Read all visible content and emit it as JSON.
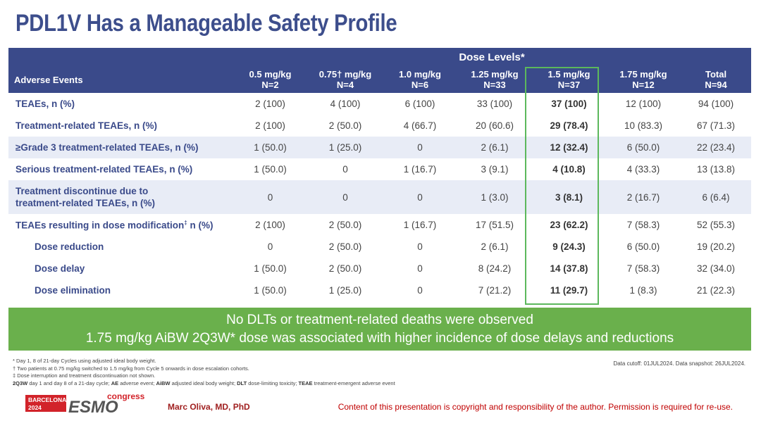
{
  "title": "PDL1V Has a Manageable Safety Profile",
  "table": {
    "dose_levels_label": "Dose Levels*",
    "ae_header": "Adverse Events",
    "columns": [
      {
        "dose": "0.5 mg/kg",
        "n": "N=2"
      },
      {
        "dose": "0.75† mg/kg",
        "n": "N=4"
      },
      {
        "dose": "1.0 mg/kg",
        "n": "N=6"
      },
      {
        "dose": "1.25 mg/kg",
        "n": "N=33"
      },
      {
        "dose": "1.5 mg/kg",
        "n": "N=37"
      },
      {
        "dose": "1.75 mg/kg",
        "n": "N=12"
      },
      {
        "dose": "Total",
        "n": "N=94"
      }
    ],
    "rows": [
      {
        "label": "TEAEs, n (%)",
        "values": [
          "2 (100)",
          "4 (100)",
          "6 (100)",
          "33 (100)",
          "37 (100)",
          "12 (100)",
          "94 (100)"
        ]
      },
      {
        "label": "Treatment-related TEAEs, n (%)",
        "values": [
          "2 (100)",
          "2 (50.0)",
          "4 (66.7)",
          "20 (60.6)",
          "29 (78.4)",
          "10 (83.3)",
          "67 (71.3)"
        ]
      },
      {
        "label": "≥Grade 3 treatment-related TEAEs, n (%)",
        "values": [
          "1 (50.0)",
          "1 (25.0)",
          "0",
          "2 (6.1)",
          "12 (32.4)",
          "6 (50.0)",
          "22 (23.4)"
        ]
      },
      {
        "label": "Serious treatment-related TEAEs, n (%)",
        "values": [
          "1 (50.0)",
          "0",
          "1 (16.7)",
          "3 (9.1)",
          "4 (10.8)",
          "4 (33.3)",
          "13 (13.8)"
        ]
      },
      {
        "label_line1": "Treatment discontinue due to",
        "label_line2": "treatment-related TEAEs, n (%)",
        "values": [
          "0",
          "0",
          "0",
          "1 (3.0)",
          "3 (8.1)",
          "2 (16.7)",
          "6 (6.4)"
        ]
      },
      {
        "label": "TEAEs resulting in dose modification",
        "label_sup": "‡",
        "label_tail": " n (%)",
        "values": [
          "2 (100)",
          "2 (50.0)",
          "1 (16.7)",
          "17 (51.5)",
          "23 (62.2)",
          "7 (58.3)",
          "52 (55.3)"
        ]
      },
      {
        "label": "Dose reduction",
        "values": [
          "0",
          "2 (50.0)",
          "0",
          "2 (6.1)",
          "9 (24.3)",
          "6 (50.0)",
          "19 (20.2)"
        ]
      },
      {
        "label": "Dose delay",
        "values": [
          "1 (50.0)",
          "2 (50.0)",
          "0",
          "8 (24.2)",
          "14 (37.8)",
          "7 (58.3)",
          "32 (34.0)"
        ]
      },
      {
        "label": "Dose elimination",
        "values": [
          "1 (50.0)",
          "1 (25.0)",
          "0",
          "7 (21.2)",
          "11 (29.7)",
          "1 (8.3)",
          "21 (22.3)"
        ]
      }
    ]
  },
  "banner": {
    "line1": "No DLTs or treatment-related deaths were observed",
    "line2": "1.75 mg/kg AiBW 2Q3W* dose was associated with higher incidence of dose delays and reductions"
  },
  "footnotes": {
    "f1": "* Day 1, 8 of 21-day Cycles using adjusted ideal body weight.",
    "f2": "† Two patients at 0.75 mg/kg switched to 1.5 mg/kg from Cycle 5 onwards in dose escalation cohorts.",
    "f3": "‡ Dose interruption and treatment discontinuation not shown.",
    "abbr_2q3w": "2Q3W",
    "abbr_2q3w_def": " day 1 and day 8 of a 21-day cycle; ",
    "abbr_ae": "AE",
    "abbr_ae_def": " adverse event; ",
    "abbr_aibw": "AiBW",
    "abbr_aibw_def": " adjusted ideal body weight; ",
    "abbr_dlt": "DLT",
    "abbr_dlt_def": " dose-limiting toxicity; ",
    "abbr_teae": "TEAE",
    "abbr_teae_def": " treatment-emergent adverse event"
  },
  "cutoff": "Data cutoff: 01JUL2024. Data snapshot: 26JUL2024.",
  "logo": {
    "city": "BARCELONA",
    "year": "2024",
    "brand": "ESMO",
    "word": "congress"
  },
  "presenter": "Marc Oliva, MD, PhD",
  "copyright": "Content of this presentation is copyright and responsibility of the author. Permission is required for re-use.",
  "colors": {
    "header": "#3a4a8a",
    "banner": "#6ab04c",
    "highlight_box": "#5cb85c",
    "alt_row": "#e8ecf6",
    "esmo_red": "#d2232a"
  }
}
